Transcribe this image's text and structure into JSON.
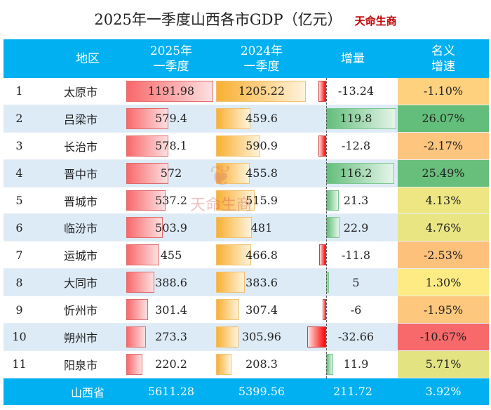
{
  "title": "2025年一季度山西各市GDP（亿元）",
  "brand": "天命生商",
  "watermark": "天命生商",
  "chart_data": {
    "type": "table",
    "columns": [
      "",
      "地区",
      "2025年一季度",
      "2024年一季度",
      "增量",
      "名义增速"
    ],
    "header": {
      "region": "地区",
      "q2025": "2025年",
      "q2025b": "一季度",
      "q2024": "2024年",
      "q2024b": "一季度",
      "delta": "增量",
      "growth": "名义",
      "growthb": "增速"
    },
    "rows": [
      {
        "rank": "1",
        "region": "太原市",
        "q2025": 1191.98,
        "q2024": 1205.22,
        "delta": -13.24,
        "growth": -1.1
      },
      {
        "rank": "2",
        "region": "吕梁市",
        "q2025": 579.4,
        "q2024": 459.6,
        "delta": 119.8,
        "growth": 26.07
      },
      {
        "rank": "3",
        "region": "长治市",
        "q2025": 578.1,
        "q2024": 590.9,
        "delta": -12.8,
        "growth": -2.17
      },
      {
        "rank": "4",
        "region": "晋中市",
        "q2025": 572,
        "q2024": 455.8,
        "delta": 116.2,
        "growth": 25.49
      },
      {
        "rank": "5",
        "region": "晋城市",
        "q2025": 537.2,
        "q2024": 515.9,
        "delta": 21.3,
        "growth": 4.13
      },
      {
        "rank": "6",
        "region": "临汾市",
        "q2025": 503.9,
        "q2024": 481,
        "delta": 22.9,
        "growth": 4.76
      },
      {
        "rank": "7",
        "region": "运城市",
        "q2025": 455,
        "q2024": 466.8,
        "delta": -11.8,
        "growth": -2.53
      },
      {
        "rank": "8",
        "region": "大同市",
        "q2025": 388.6,
        "q2024": 383.6,
        "delta": 5,
        "growth": 1.3
      },
      {
        "rank": "9",
        "region": "忻州市",
        "q2025": 301.4,
        "q2024": 307.4,
        "delta": -6,
        "growth": -1.95
      },
      {
        "rank": "10",
        "region": "朔州市",
        "q2025": 273.3,
        "q2024": 305.96,
        "delta": -32.66,
        "growth": -10.67
      },
      {
        "rank": "11",
        "region": "阳泉市",
        "q2025": 220.2,
        "q2024": 208.3,
        "delta": 11.9,
        "growth": 5.71
      }
    ],
    "total": {
      "region": "山西省",
      "q2025": "5611.28",
      "q2024": "5399.56",
      "delta": "211.72",
      "growth": "3.92%"
    },
    "colors": {
      "header": "#00b0f0",
      "bar2025": "#f8696b",
      "bar2024": "#f8b032",
      "delta_pos": "#63be7b",
      "delta_neg": "#ff0000",
      "scale_low": "#f8696b",
      "scale_mid": "#ffeb84",
      "scale_high": "#63be7b"
    }
  }
}
